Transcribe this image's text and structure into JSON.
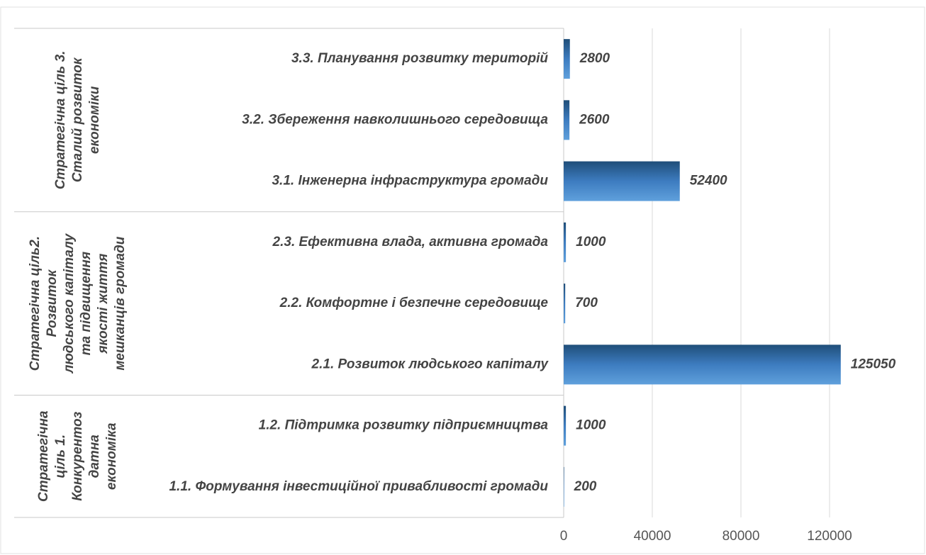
{
  "chart_data": {
    "type": "bar",
    "orientation": "horizontal",
    "groups": [
      {
        "label": [
          "Стратегічна ціль 3.",
          "Сталий розвиток",
          "економіки"
        ],
        "categories": [
          "3.3. Планування розвитку територій",
          "3.2. Збереження навколишнього середовища",
          "3.1. Інженерна інфраструктура громади"
        ],
        "values": [
          2800,
          2600,
          52400
        ]
      },
      {
        "label": [
          "Стратегічна ціль2.",
          "Розвиток",
          "людського капіталу",
          "та підвищення",
          "якості життя",
          "мешканців громади"
        ],
        "categories": [
          "2.3. Ефективна влада, активна громада",
          "2.2. Комфортне і безпечне середовище",
          "2.1. Розвиток людського капіталу"
        ],
        "values": [
          1000,
          700,
          125050
        ]
      },
      {
        "label": [
          "Стратегічна",
          "ціль 1.",
          "Конкурентоз",
          "датна",
          "економіка"
        ],
        "categories": [
          "1.2.      Підтримка розвитку підприємництва",
          "1.1.      Формування інвестиційної привабливості громади"
        ],
        "values": [
          1000,
          200
        ]
      }
    ],
    "color": "#3d7cc0",
    "xlim": [
      0,
      160000
    ],
    "xticks": [
      0,
      40000,
      80000,
      120000
    ],
    "grid": true
  }
}
